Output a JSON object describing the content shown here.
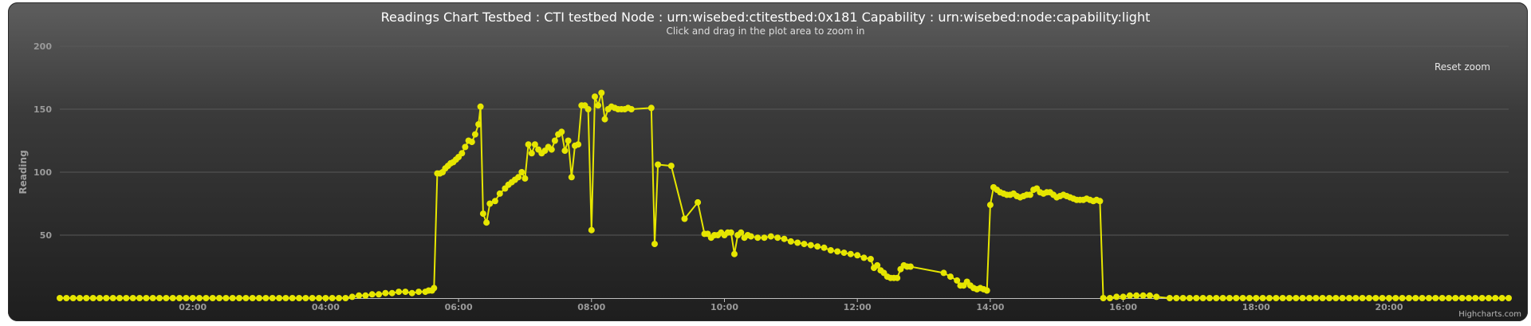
{
  "chart_data": {
    "type": "line",
    "title": "Readings Chart Testbed : CTI testbed Node : urn:wisebed:ctitestbed:0x181 Capability : urn:wisebed:node:capability:light",
    "subtitle": "Click and drag in the plot area to zoom in",
    "ylabel": "Reading",
    "xlabel": "",
    "x_unit": "hours",
    "xlim": [
      0.0,
      21.8
    ],
    "ylim": [
      0,
      200
    ],
    "y_ticks": [
      50,
      100,
      150,
      200
    ],
    "y_tick_labels": [
      "50",
      "100",
      "150",
      "200"
    ],
    "x_ticks": [
      2,
      4,
      6,
      8,
      10,
      12,
      14,
      16,
      18,
      20
    ],
    "x_tick_labels": [
      "02:00",
      "04:00",
      "06:00",
      "08:00",
      "10:00",
      "12:00",
      "14:00",
      "16:00",
      "18:00",
      "20:00"
    ],
    "grid": true,
    "legend": "none",
    "series": [
      {
        "color": "#e6e600",
        "marker_radius": 4,
        "x": [
          4.4,
          4.5,
          4.6,
          4.7,
          4.8,
          4.9,
          5.0,
          5.1,
          5.2,
          5.3,
          5.4,
          5.5,
          5.55,
          5.6,
          5.63,
          5.68,
          5.72,
          5.76,
          5.8,
          5.84,
          5.88,
          5.92,
          5.96,
          6.0,
          6.05,
          6.1,
          6.15,
          6.2,
          6.25,
          6.3,
          6.33,
          6.37,
          6.42,
          6.47,
          6.55,
          6.62,
          6.7,
          6.75,
          6.8,
          6.85,
          6.9,
          6.95,
          7.0,
          7.05,
          7.1,
          7.15,
          7.2,
          7.25,
          7.3,
          7.35,
          7.4,
          7.45,
          7.5,
          7.55,
          7.6,
          7.65,
          7.7,
          7.75,
          7.8,
          7.85,
          7.9,
          7.95,
          8.0,
          8.05,
          8.1,
          8.15,
          8.2,
          8.25,
          8.3,
          8.35,
          8.4,
          8.45,
          8.5,
          8.55,
          8.6,
          8.9,
          8.95,
          9.0,
          9.2,
          9.4,
          9.6,
          9.7,
          9.75,
          9.8,
          9.85,
          9.9,
          9.95,
          10.0,
          10.05,
          10.1,
          10.15,
          10.2,
          10.25,
          10.3,
          10.35,
          10.4,
          10.5,
          10.6,
          10.7,
          10.8,
          10.9,
          11.0,
          11.1,
          11.2,
          11.3,
          11.4,
          11.5,
          11.6,
          11.7,
          11.8,
          11.9,
          12.0,
          12.1,
          12.2,
          12.25,
          12.3,
          12.35,
          12.4,
          12.45,
          12.5,
          12.55,
          12.6,
          12.65,
          12.7,
          12.75,
          12.8,
          13.3,
          13.4,
          13.5,
          13.55,
          13.6,
          13.65,
          13.7,
          13.75,
          13.8,
          13.85,
          13.9,
          13.95,
          14.0,
          14.05,
          14.1,
          14.15,
          14.2,
          14.25,
          14.3,
          14.35,
          14.4,
          14.45,
          14.5,
          14.55,
          14.6,
          14.65,
          14.7,
          14.75,
          14.8,
          14.85,
          14.9,
          14.95,
          15.0,
          15.05,
          15.1,
          15.15,
          15.2,
          15.25,
          15.3,
          15.35,
          15.4,
          15.45,
          15.5,
          15.55,
          15.6,
          15.65,
          15.7,
          15.8,
          15.9,
          16.0,
          16.1,
          16.2,
          16.3,
          16.4,
          16.5,
          16.7
        ],
        "y": [
          1,
          2,
          2,
          3,
          3,
          4,
          4,
          5,
          5,
          4,
          5,
          5,
          6,
          6,
          8,
          99,
          99,
          100,
          103,
          105,
          107,
          108,
          110,
          112,
          115,
          120,
          125,
          124,
          130,
          138,
          152,
          67,
          60,
          75,
          77,
          83,
          87,
          90,
          92,
          94,
          96,
          100,
          95,
          122,
          115,
          122,
          118,
          115,
          117,
          120,
          118,
          125,
          130,
          132,
          117,
          125,
          96,
          121,
          122,
          153,
          153,
          150,
          54,
          160,
          153,
          163,
          142,
          150,
          152,
          151,
          150,
          150,
          150,
          151,
          150,
          151,
          43,
          106,
          105,
          63,
          76,
          51,
          51,
          48,
          50,
          50,
          52,
          50,
          52,
          52,
          35,
          50,
          52,
          48,
          50,
          49,
          48,
          48,
          49,
          48,
          47,
          45,
          44,
          43,
          42,
          41,
          40,
          38,
          37,
          36,
          35,
          34,
          32,
          31,
          24,
          26,
          22,
          20,
          17,
          16,
          16,
          16,
          23,
          26,
          25,
          25,
          20,
          17,
          14,
          10,
          10,
          13,
          10,
          8,
          7,
          8,
          7,
          6,
          74,
          88,
          86,
          84,
          83,
          82,
          82,
          83,
          81,
          80,
          81,
          82,
          82,
          86,
          87,
          84,
          83,
          84,
          84,
          82,
          80,
          81,
          82,
          81,
          80,
          79,
          78,
          78,
          78,
          79,
          78,
          77,
          78,
          77,
          0,
          0,
          1,
          1,
          2,
          2,
          2,
          2,
          1,
          0
        ]
      }
    ]
  },
  "controls": {
    "reset_zoom_label": "Reset zoom"
  },
  "credits": "Highcharts.com"
}
